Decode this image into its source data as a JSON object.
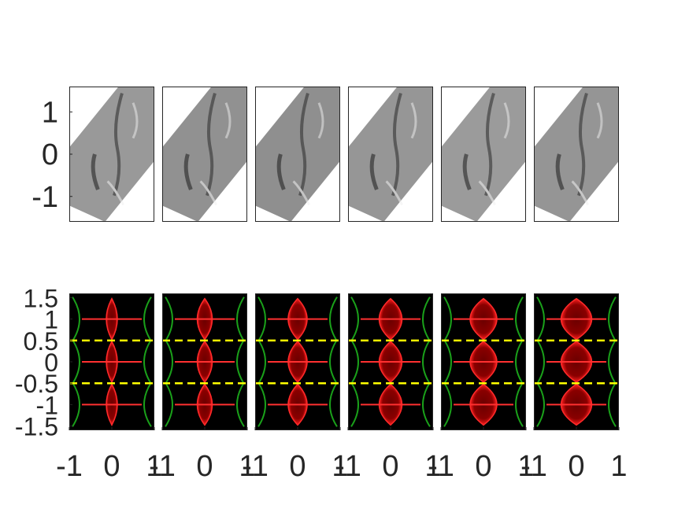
{
  "chart_data": [
    {
      "type": "heatmap",
      "panel_count": 6,
      "colormap": "grayscale",
      "ylim": [
        1.6,
        -1.6
      ],
      "yticks": [
        {
          "value": -1,
          "label": "-1"
        },
        {
          "value": 0,
          "label": "0"
        },
        {
          "value": 1,
          "label": "1"
        }
      ],
      "xticks_shown": false,
      "grid": false,
      "legend": "none"
    },
    {
      "type": "heatmap",
      "panel_count": 6,
      "colormap": "black-red-green",
      "xlim": [
        -1,
        1
      ],
      "ylim": [
        1.6,
        -1.6
      ],
      "xticks": [
        {
          "value": -1,
          "label": "-1"
        },
        {
          "value": 0,
          "label": "0"
        },
        {
          "value": 1,
          "label": "1"
        }
      ],
      "yticks": [
        {
          "value": -1.5,
          "label": "-1.5"
        },
        {
          "value": -1,
          "label": "-1"
        },
        {
          "value": -0.5,
          "label": "-0.5"
        },
        {
          "value": 0,
          "label": "0"
        },
        {
          "value": 0.5,
          "label": "0.5"
        },
        {
          "value": 1,
          "label": "1"
        },
        {
          "value": 1.5,
          "label": "1.5"
        }
      ],
      "dashed_lines_y": [
        -0.5,
        0.5
      ],
      "dashed_color": "#ffff00",
      "grid": false,
      "legend": "none"
    }
  ]
}
